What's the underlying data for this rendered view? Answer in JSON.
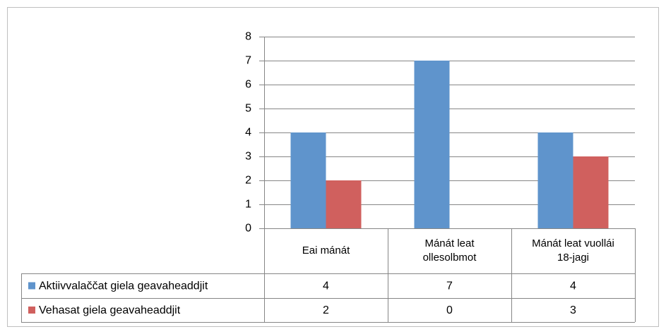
{
  "chart_data": {
    "type": "bar",
    "categories": [
      "Eai mánát",
      "Mánát leat ollesolbmot",
      "Mánát leat vuollái 18-jagi"
    ],
    "series": [
      {
        "name": "Aktiivvalaččat giela geavaheaddjit",
        "color": "#5f94cc",
        "values": [
          4,
          7,
          4
        ]
      },
      {
        "name": "Vehasat giela geavaheaddjit",
        "color": "#d0605e",
        "values": [
          2,
          0,
          3
        ]
      }
    ],
    "ylim": [
      0,
      8
    ],
    "yticks": [
      0,
      1,
      2,
      3,
      4,
      5,
      6,
      7,
      8
    ],
    "grid": true,
    "data_table": true
  }
}
